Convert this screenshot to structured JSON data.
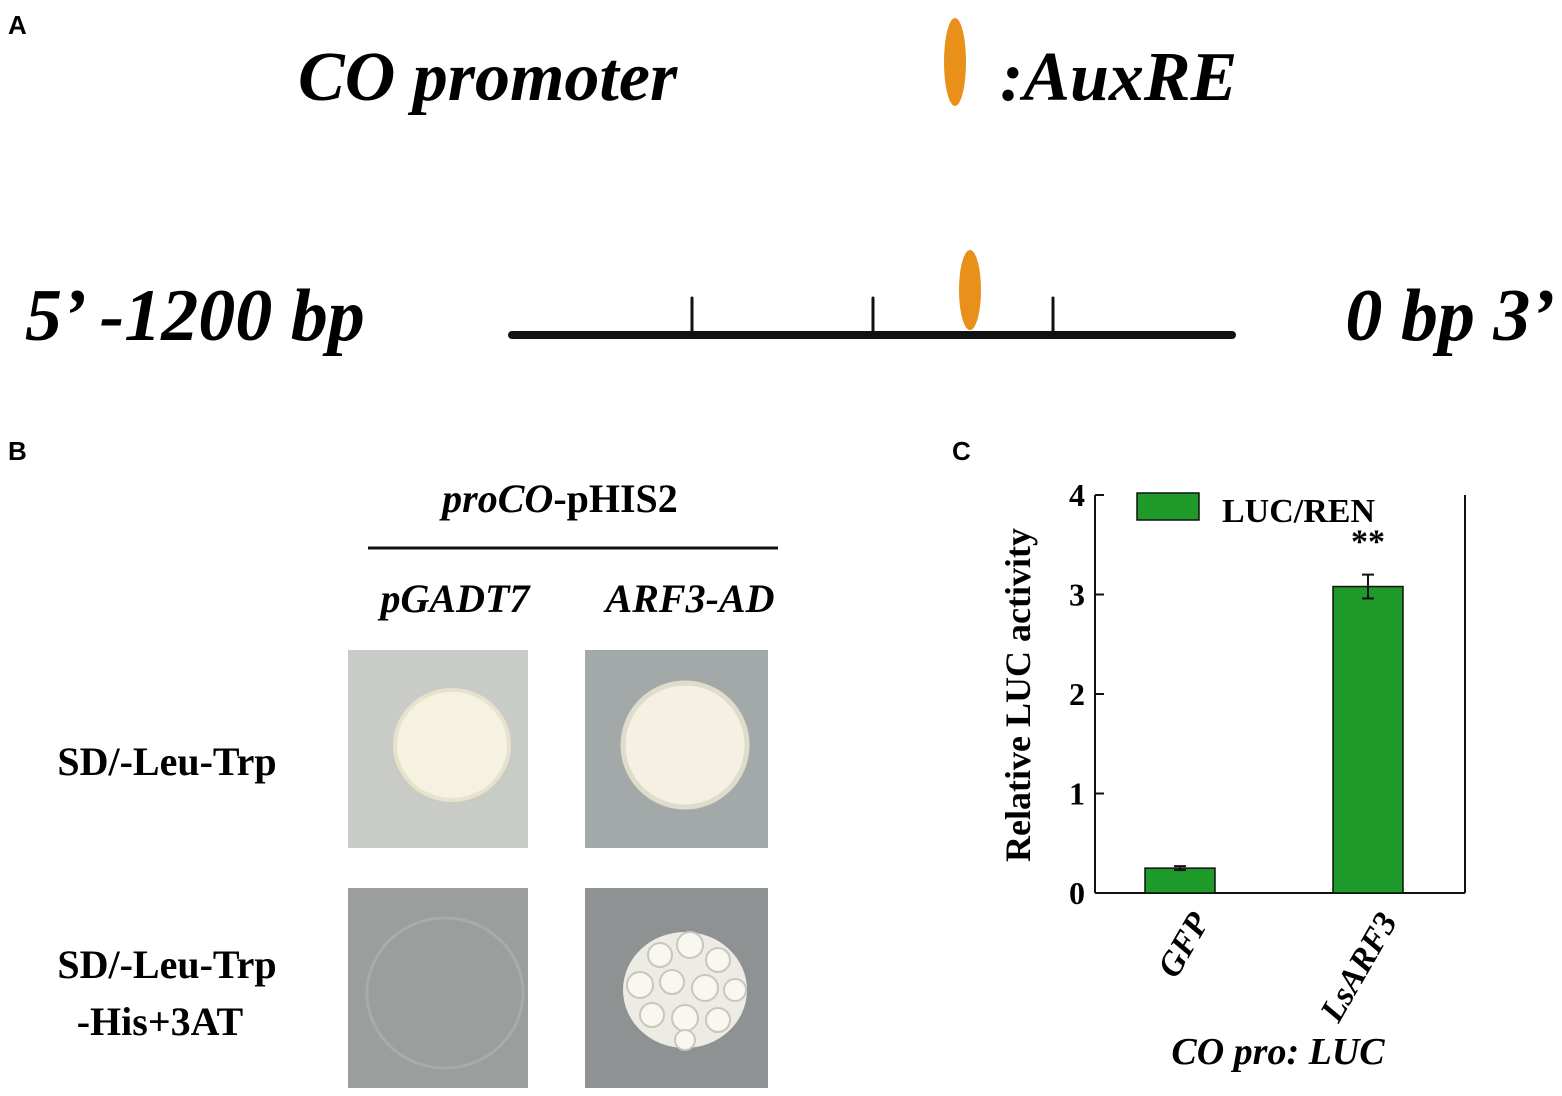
{
  "panel_a": {
    "label": "A",
    "title": "CO promoter",
    "legend_label": ":AuxRE",
    "left_label": "5’ -1200 bp",
    "right_label": "0 bp 3’"
  },
  "panel_b": {
    "label": "B",
    "construct_italic": "proCO",
    "construct_rest": "-pHIS2",
    "columns": [
      "pGADT7",
      "ARF3-AD"
    ],
    "rows": [
      [
        "SD/-Leu-Trp"
      ],
      [
        "SD/-Leu-Trp",
        "-His+3AT"
      ]
    ]
  },
  "chart_data": {
    "type": "bar",
    "panel_label": "C",
    "ylabel": "Relative LUC activity",
    "xlabel": "CO pro: LUC",
    "categories": [
      "GFP",
      "LsARF3"
    ],
    "series": [
      {
        "name": "LUC/REN",
        "color": "#1e9a2a",
        "values": [
          0.25,
          3.08
        ],
        "errors": [
          0.02,
          0.12
        ]
      }
    ],
    "significance_labels": [
      null,
      "**"
    ],
    "ylim": [
      0,
      4
    ],
    "yticks": [
      0,
      1,
      2,
      3,
      4
    ]
  }
}
